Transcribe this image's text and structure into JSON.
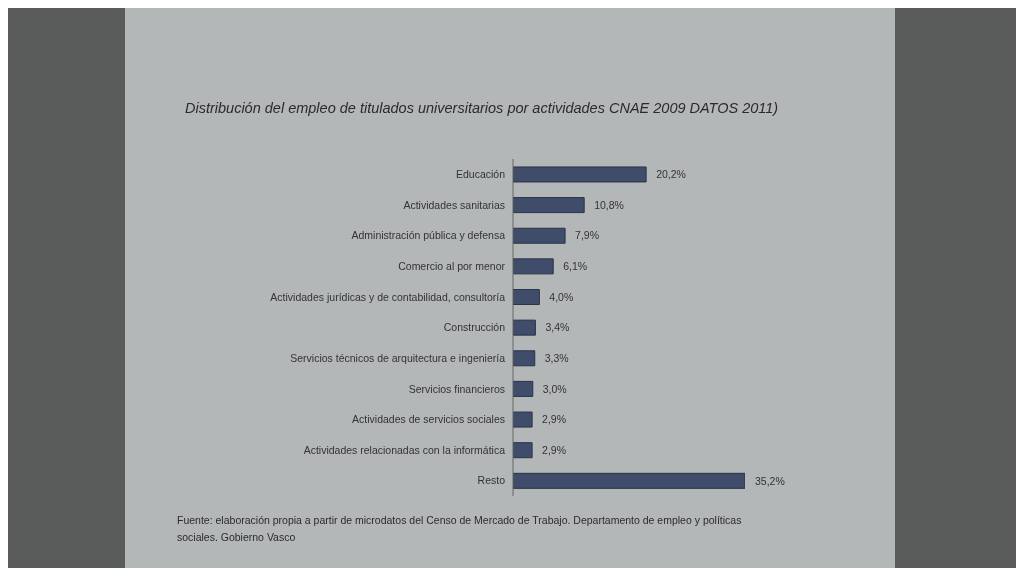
{
  "chart_data": {
    "type": "bar",
    "orientation": "horizontal",
    "title": "Distribución del empleo de titulados universitarios por actividades CNAE 2009 DATOS 2011)",
    "categories": [
      "Educación",
      "Actividades sanitarias",
      "Administración pública y defensa",
      "Comercio al por menor",
      "Actividades jurídicas y de contabilidad, consultoría",
      "Construcción",
      "Servicios técnicos de arquitectura e ingeniería",
      "Servicios financieros",
      "Actividades de servicios sociales",
      "Actividades relacionadas con la informática",
      "Resto"
    ],
    "values": [
      20.2,
      10.8,
      7.9,
      6.1,
      4.0,
      3.4,
      3.3,
      3.0,
      2.9,
      2.9,
      35.2
    ],
    "color": "#3f4d6b",
    "value_labels": [
      "20,2%",
      "10,8%",
      "7,9%",
      "6,1%",
      "4,0%",
      "3,4%",
      "3,3%",
      "3,0%",
      "2,9%",
      "2,9%",
      "35,2%"
    ],
    "annotations": [
      "Fuente: elaboración propia a partir de microdatos del Censo de Mercado de Trabajo. Departamento de empleo y políticas sociales. Gobierno Vasco"
    ]
  }
}
